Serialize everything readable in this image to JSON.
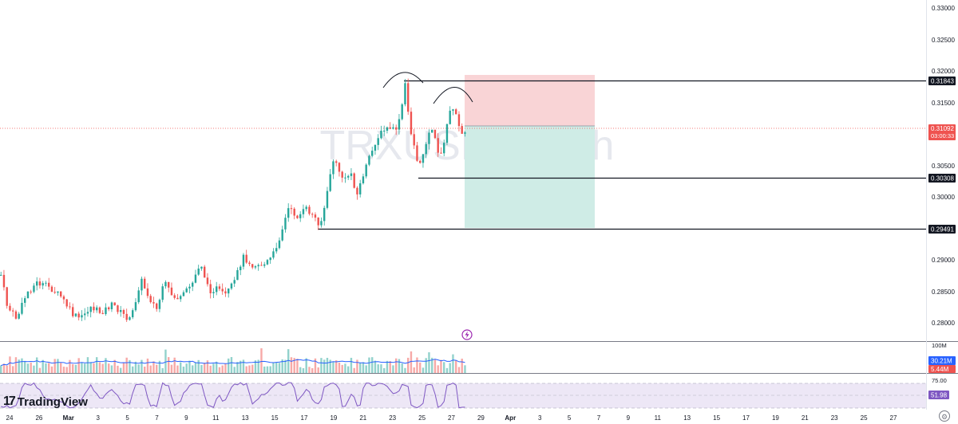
{
  "symbol_watermark": "TRXUSDT.P, 4h",
  "colors": {
    "up": "#26a69a",
    "down": "#ef5350",
    "stop_zone": "#f7c6c9",
    "target_zone": "#c9ece5",
    "rsi_band": "#7e57c2",
    "rsi_line": "#7e57c2",
    "volume_ma": "#2962ff"
  },
  "price_axis": {
    "ticks": [
      "0.33000",
      "0.32500",
      "0.32000",
      "0.31500",
      "0.30500",
      "0.30000",
      "0.29000",
      "0.28500",
      "0.28000"
    ]
  },
  "price_labels": {
    "resistance": "0.31843",
    "current_price": "0.31092",
    "countdown": "03:00:33",
    "support_1": "0.30308",
    "support_2": "0.29491"
  },
  "volume": {
    "label_top": "100M",
    "ma_value": "30.21M",
    "value": "5.44M"
  },
  "rsi": {
    "level_high": "75.00",
    "value": "51.98"
  },
  "time_axis": {
    "labels": [
      "24",
      "26",
      "Mar",
      "3",
      "5",
      "7",
      "9",
      "11",
      "13",
      "15",
      "17",
      "19",
      "21",
      "23",
      "25",
      "27",
      "29",
      "Apr",
      "3",
      "5",
      "7",
      "9",
      "11",
      "13",
      "15",
      "17",
      "19",
      "21",
      "23",
      "25",
      "27"
    ]
  },
  "branding": {
    "logo_text": "TradingView"
  },
  "icons": {
    "settings": "gear-icon",
    "flash": "lightning-icon"
  }
}
